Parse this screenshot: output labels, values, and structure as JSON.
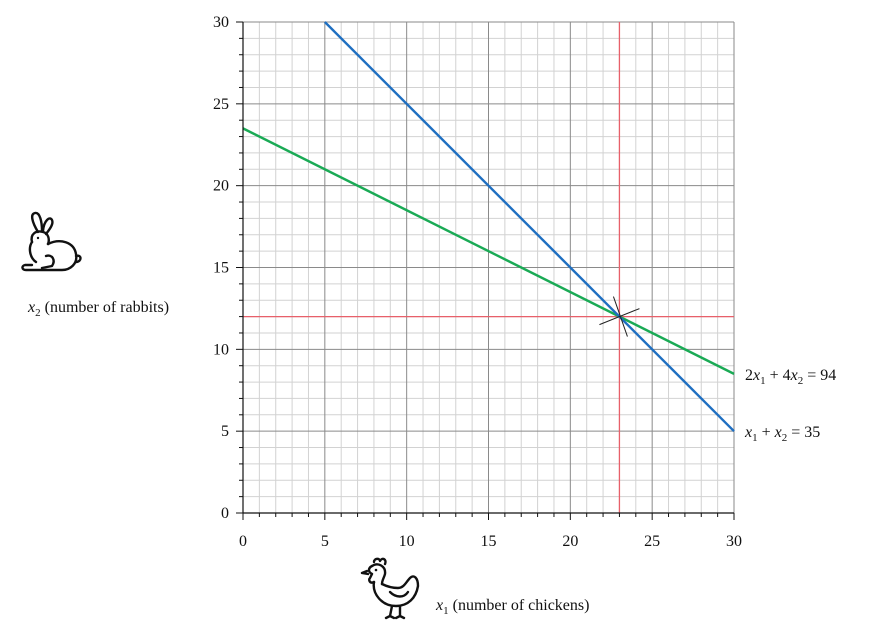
{
  "chart_data": {
    "type": "line",
    "title": "",
    "xlabel": {
      "var": "x",
      "sub": "1",
      "text": " (number of chickens)"
    },
    "ylabel": {
      "var": "x",
      "sub": "2",
      "text": " (number of rabbits)"
    },
    "xlim": [
      0,
      30
    ],
    "ylim": [
      0,
      30
    ],
    "x_ticks": [
      0,
      5,
      10,
      15,
      20,
      25,
      30
    ],
    "y_ticks": [
      0,
      5,
      10,
      15,
      20,
      25,
      30
    ],
    "grid": true,
    "series": [
      {
        "name": "2x1 + 4x2 = 94",
        "label": {
          "parts": [
            {
              "t": "2",
              "i": false
            },
            {
              "t": "x",
              "i": true
            },
            {
              "t": "1",
              "sub": true
            },
            {
              "t": " + 4",
              "i": false
            },
            {
              "t": "x",
              "i": true
            },
            {
              "t": "2",
              "sub": true
            },
            {
              "t": " = 94",
              "i": false
            }
          ]
        },
        "color": "#1aaa55",
        "x": [
          0,
          30
        ],
        "y": [
          23.5,
          8.5
        ]
      },
      {
        "name": "x1 + x2 = 35",
        "label": {
          "parts": [
            {
              "t": "x",
              "i": true
            },
            {
              "t": "1",
              "sub": true
            },
            {
              "t": " + ",
              "i": false
            },
            {
              "t": "x",
              "i": true
            },
            {
              "t": "2",
              "sub": true
            },
            {
              "t": " = 35",
              "i": false
            }
          ]
        },
        "color": "#1f6fc1",
        "x": [
          5,
          30
        ],
        "y": [
          30,
          5
        ]
      }
    ],
    "reference_lines": {
      "x": 23,
      "y": 12,
      "color": "#e8606a"
    },
    "intersection": {
      "x": 23,
      "y": 12
    }
  },
  "icons": {
    "rabbit": "rabbit-icon",
    "chicken": "chicken-icon"
  }
}
